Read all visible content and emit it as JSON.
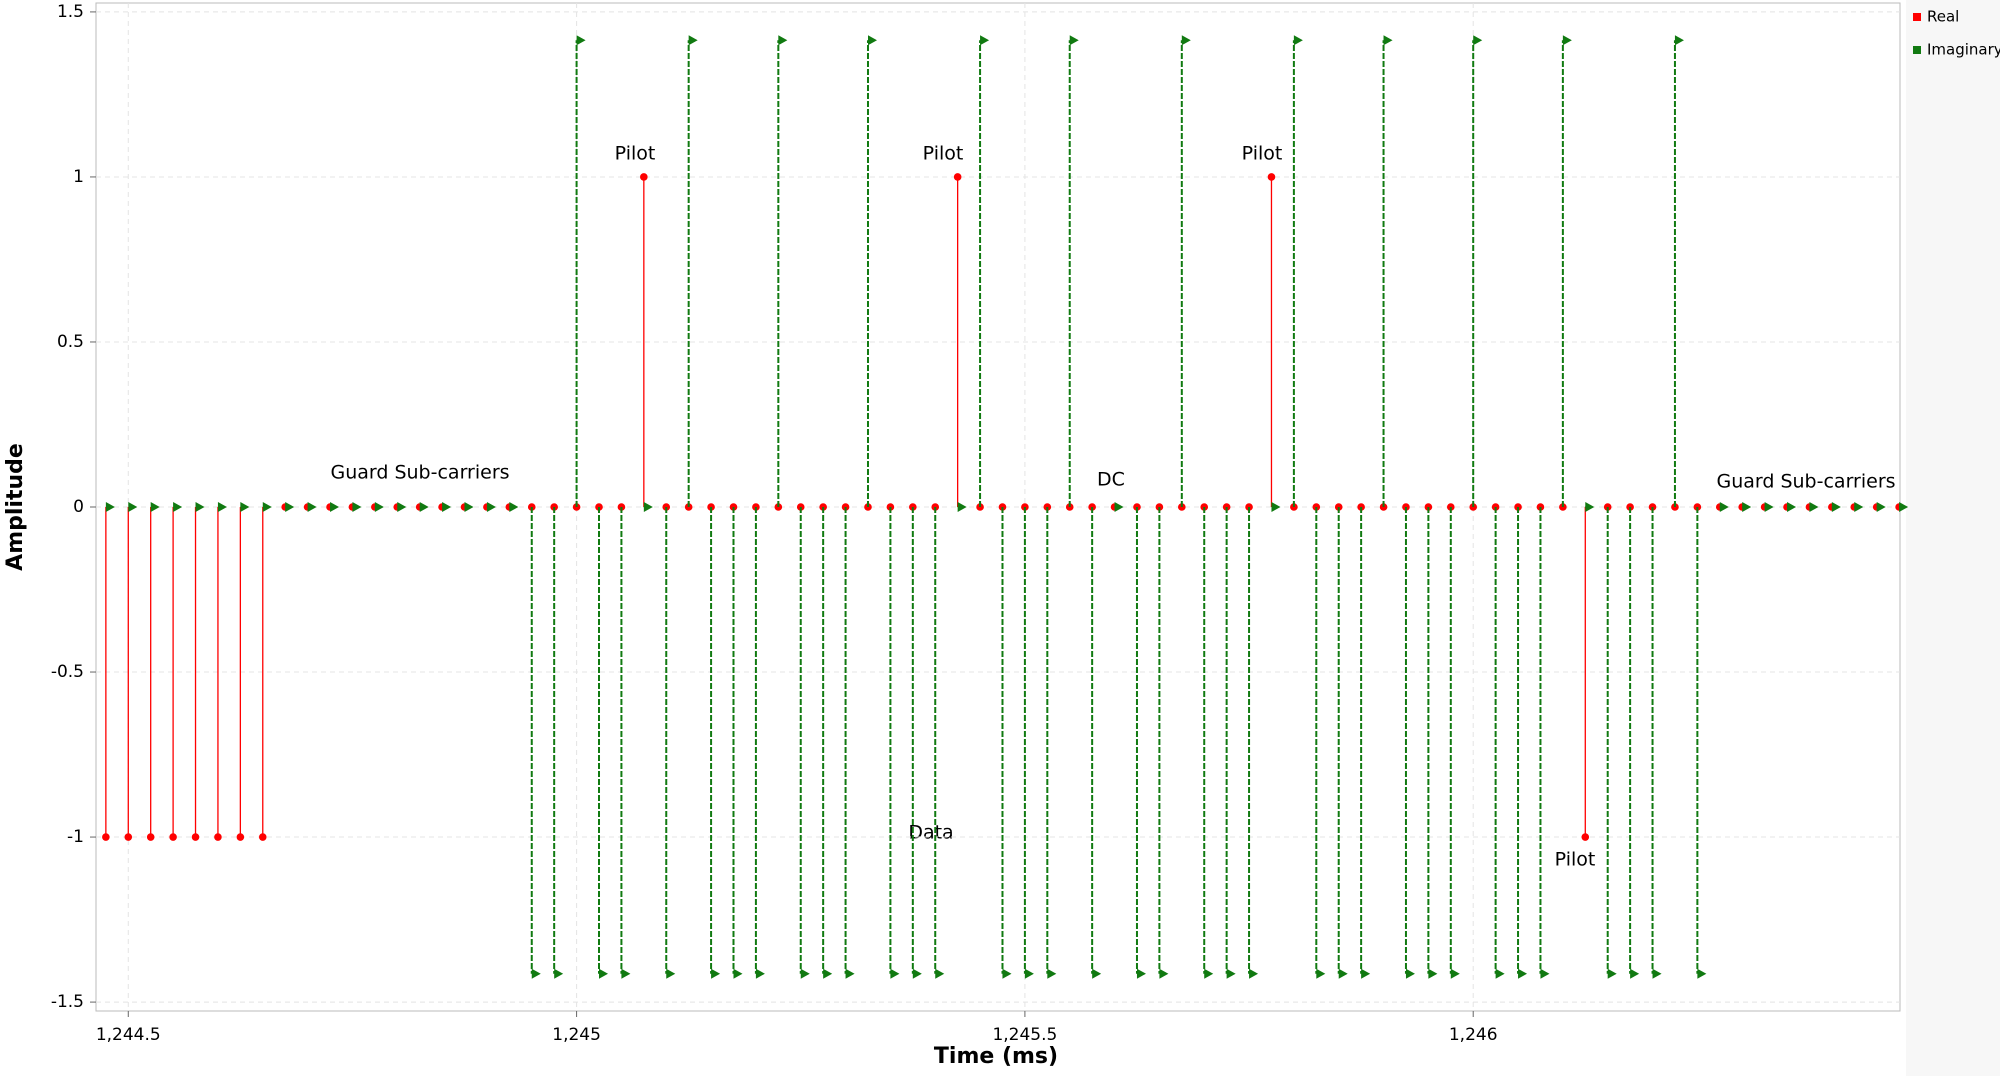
{
  "chart_data": {
    "type": "stem",
    "xlabel": "Time (ms)",
    "ylabel": "Amplitude",
    "x_start": 1244.475,
    "x_step": 0.025,
    "xlim": [
      1244.464,
      1246.476
    ],
    "xticks": [
      {
        "value": 1244.5,
        "label": "1,244.5"
      },
      {
        "value": 1245,
        "label": "1,245"
      },
      {
        "value": 1245.5,
        "label": "1,245.5"
      },
      {
        "value": 1246,
        "label": "1,246"
      }
    ],
    "ylim": [
      -1.527,
      1.527
    ],
    "yticks": [
      1.5,
      1,
      0.5,
      0,
      -0.5,
      -1,
      -1.5
    ],
    "grid": true,
    "legend": "right",
    "series": [
      {
        "name": "Real",
        "color": "#ff0000",
        "marker": "circle",
        "values": [
          -1,
          -1,
          -1,
          -1,
          -1,
          -1,
          -1,
          -1,
          0,
          0,
          0,
          0,
          0,
          0,
          0,
          0,
          0,
          0,
          0,
          0,
          0,
          0,
          0,
          0,
          1,
          0,
          0,
          0,
          0,
          0,
          0,
          0,
          0,
          0,
          0,
          0,
          0,
          0,
          1,
          0,
          0,
          0,
          0,
          0,
          0,
          0,
          0,
          0,
          0,
          0,
          0,
          0,
          1,
          0,
          0,
          0,
          0,
          0,
          0,
          0,
          0,
          0,
          0,
          0,
          0,
          0,
          -1,
          0,
          0,
          0,
          0,
          0,
          0,
          0,
          0,
          0,
          0,
          0,
          0,
          0,
          0
        ]
      },
      {
        "name": "Imaginary",
        "color": "#117a11",
        "marker": "triangle",
        "values": [
          0,
          0,
          0,
          0,
          0,
          0,
          0,
          0,
          0,
          0,
          0,
          0,
          0,
          0,
          0,
          0,
          0,
          0,
          0,
          -1.414,
          -1.414,
          1.414,
          -1.414,
          -1.414,
          0,
          -1.414,
          1.414,
          -1.414,
          -1.414,
          -1.414,
          1.414,
          -1.414,
          -1.414,
          -1.414,
          1.414,
          -1.414,
          -1.414,
          -1.414,
          0,
          1.414,
          -1.414,
          -1.414,
          -1.414,
          1.414,
          -1.414,
          0,
          -1.414,
          -1.414,
          1.414,
          -1.414,
          -1.414,
          -1.414,
          0,
          1.414,
          -1.414,
          -1.414,
          -1.414,
          1.414,
          -1.414,
          -1.414,
          -1.414,
          1.414,
          -1.414,
          -1.414,
          -1.414,
          1.414,
          0,
          -1.414,
          -1.414,
          -1.414,
          1.414,
          -1.414,
          0,
          0,
          0,
          0,
          0,
          0,
          0,
          0,
          0
        ]
      }
    ],
    "annotations": [
      "Guard Sub-carriers",
      "Pilot",
      "Pilot",
      "Pilot",
      "DC",
      "Data",
      "Pilot",
      "Guard Sub-carriers"
    ]
  }
}
